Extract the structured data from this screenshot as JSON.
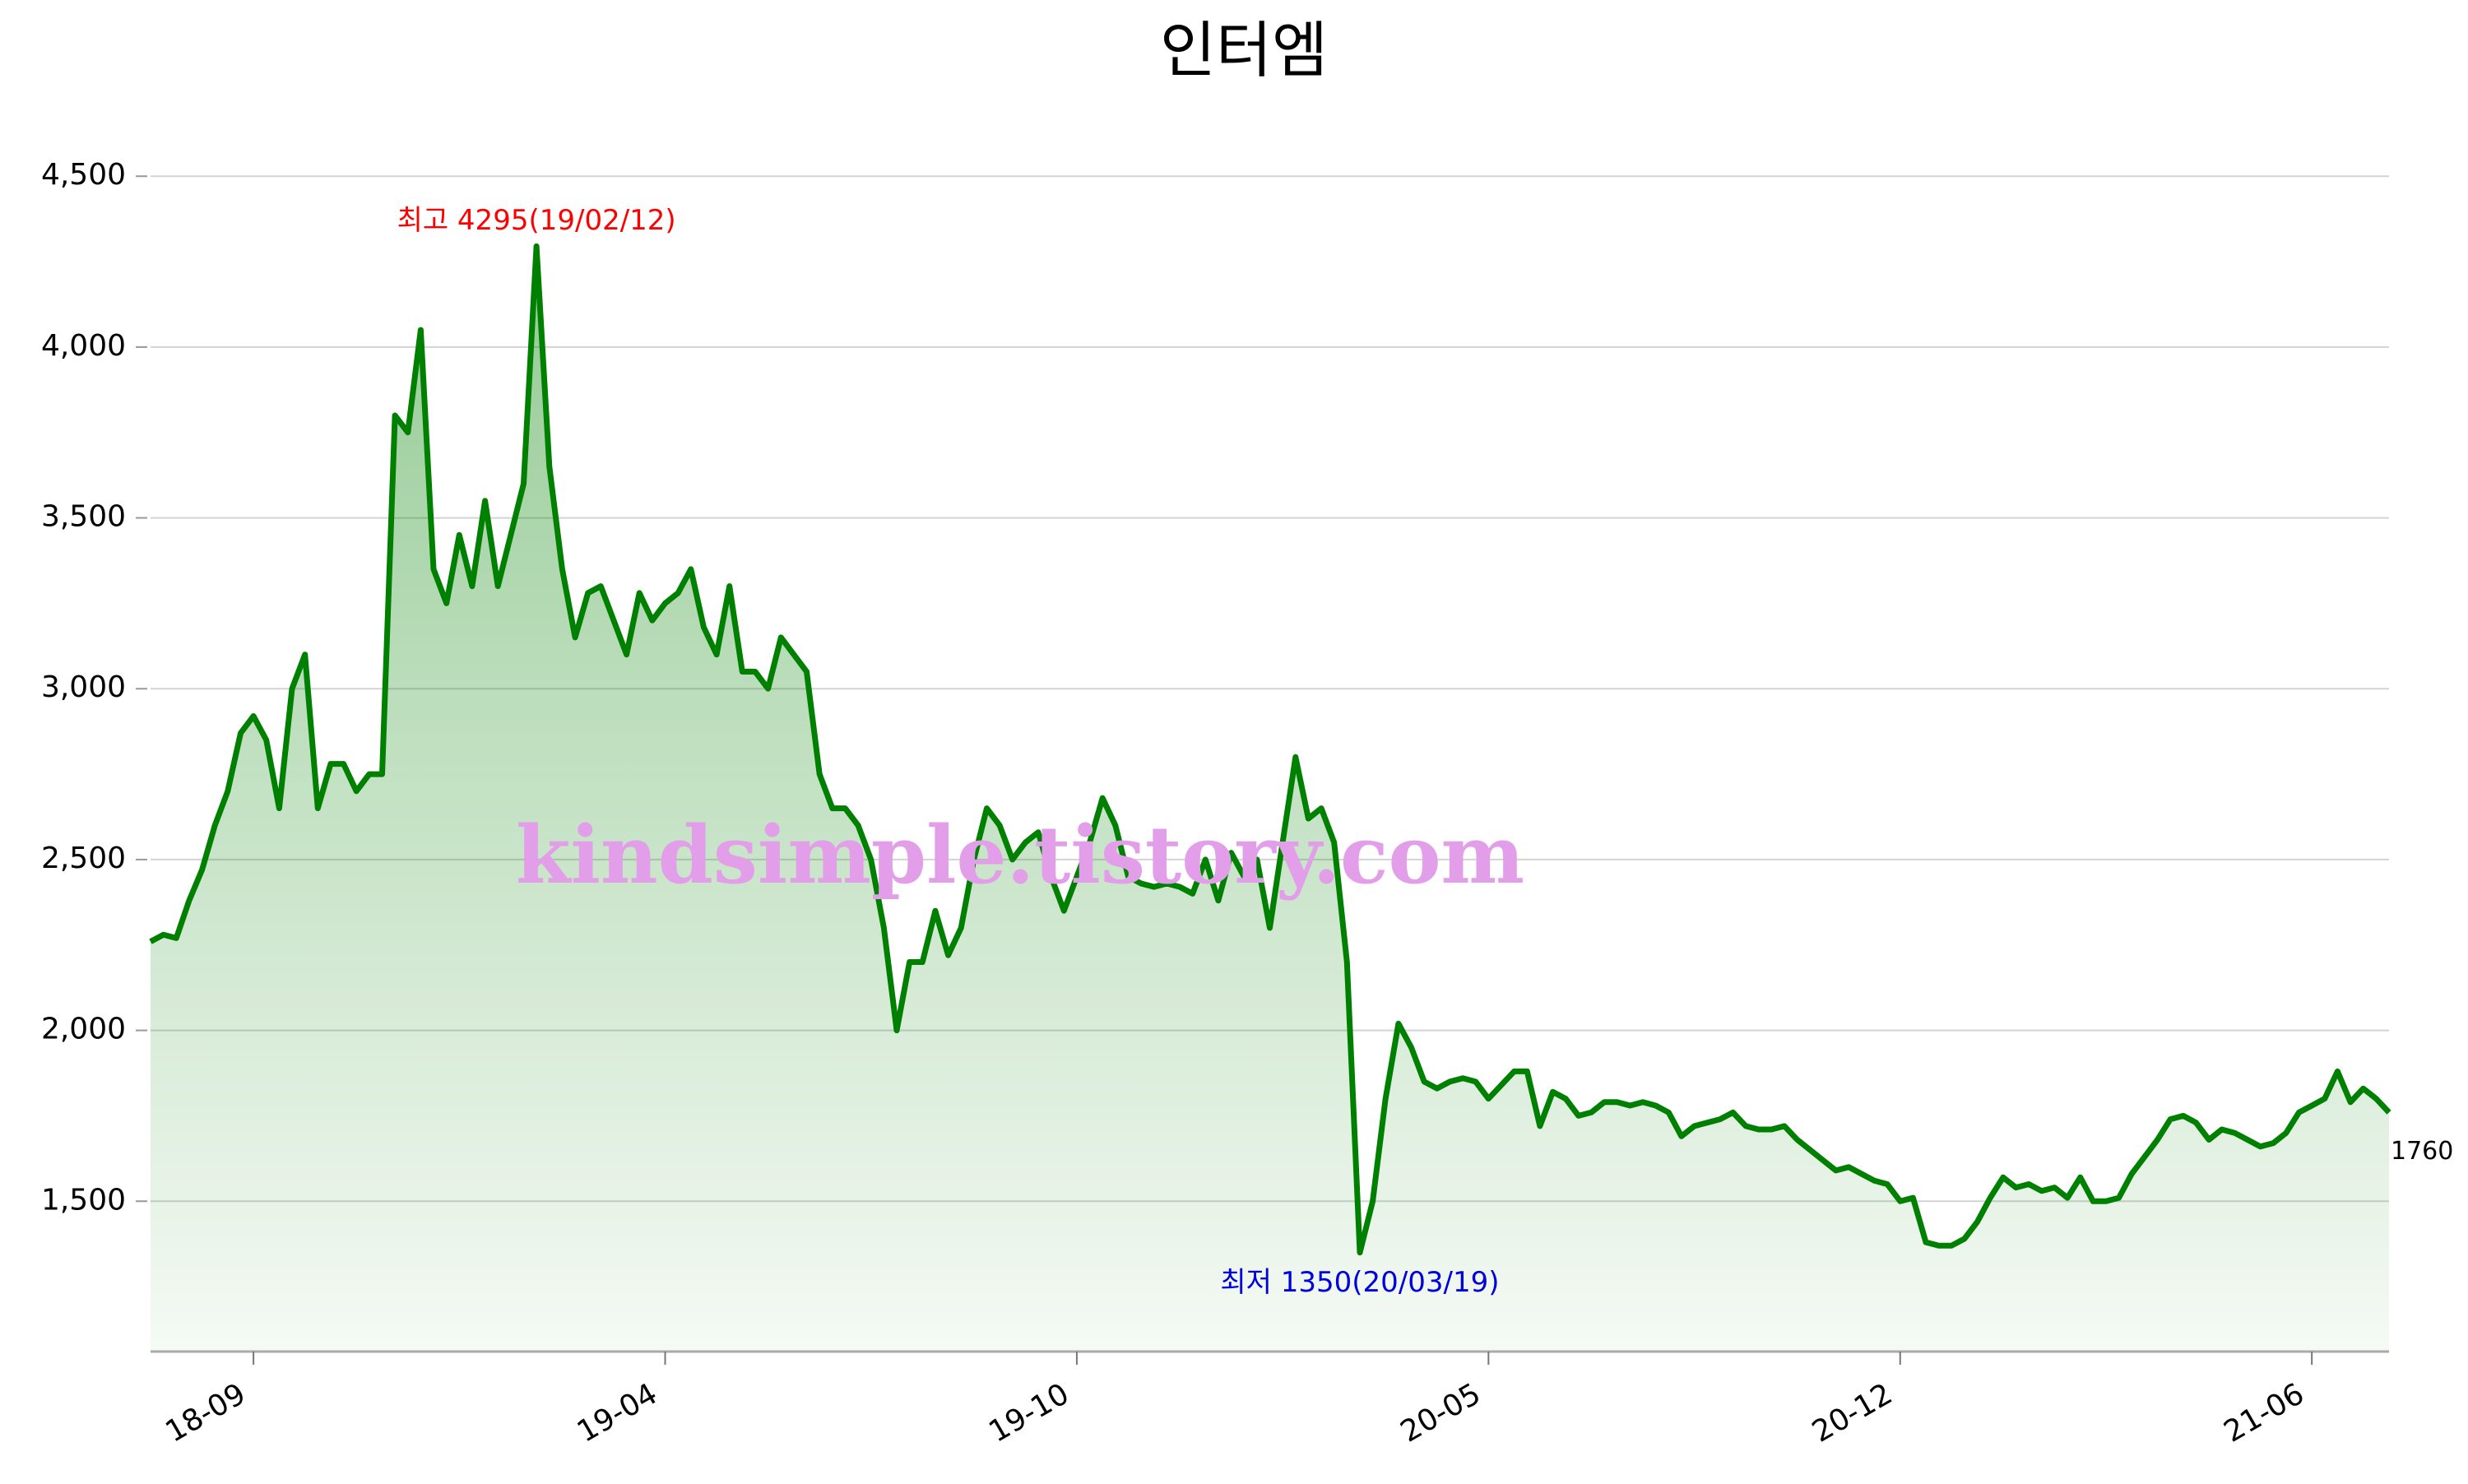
{
  "chart_data": {
    "type": "line",
    "title": "인터엠",
    "watermark": "kindsimple.tistory.com",
    "annotations": {
      "max": "최고 4295(19/02/12)",
      "min": "최저 1350(20/03/19)"
    },
    "color": "#008000",
    "categories": [
      null,
      null,
      null,
      null,
      null,
      null,
      null,
      null,
      "18-09",
      null,
      null,
      null,
      null,
      null,
      null,
      null,
      null,
      null,
      null,
      null,
      null,
      null,
      null,
      null,
      null,
      null,
      null,
      null,
      null,
      null,
      null,
      null,
      null,
      null,
      null,
      null,
      null,
      null,
      null,
      null,
      "19-04",
      null,
      null,
      null,
      null,
      null,
      null,
      null,
      null,
      null,
      null,
      null,
      null,
      null,
      null,
      null,
      null,
      null,
      null,
      null,
      null,
      null,
      null,
      null,
      null,
      null,
      null,
      null,
      null,
      null,
      null,
      null,
      "19-10",
      null,
      null,
      null,
      null,
      null,
      null,
      null,
      null,
      null,
      null,
      null,
      null,
      null,
      null,
      null,
      null,
      null,
      null,
      null,
      null,
      null,
      null,
      null,
      null,
      null,
      null,
      null,
      null,
      null,
      null,
      null,
      "20-05",
      null,
      null,
      null,
      null,
      null,
      null,
      null,
      null,
      null,
      null,
      null,
      null,
      null,
      null,
      null,
      null,
      null,
      null,
      null,
      null,
      null,
      null,
      null,
      null,
      null,
      null,
      null,
      null,
      null,
      null,
      null,
      "20-12",
      null,
      null,
      null,
      null,
      null,
      null,
      null,
      null,
      null,
      null,
      null,
      null,
      null,
      null,
      null,
      null,
      null,
      null,
      null,
      null,
      null,
      null,
      null,
      null,
      null,
      null,
      null,
      null,
      null,
      null,
      null,
      "21-06",
      null,
      null,
      null,
      null,
      null,
      null
    ],
    "values": [
      2260,
      2280,
      2270,
      2380,
      2470,
      2600,
      2700,
      2870,
      2920,
      2850,
      2650,
      3000,
      3100,
      2650,
      2780,
      2780,
      2700,
      2750,
      2750,
      3800,
      3750,
      4050,
      3350,
      3250,
      3450,
      3300,
      3550,
      3300,
      3450,
      3600,
      4295,
      3650,
      3350,
      3150,
      3280,
      3300,
      3200,
      3100,
      3280,
      3200,
      3250,
      3280,
      3350,
      3180,
      3100,
      3300,
      3050,
      3050,
      3000,
      3150,
      3100,
      3050,
      2750,
      2650,
      2650,
      2600,
      2500,
      2300,
      2000,
      2200,
      2200,
      2350,
      2220,
      2300,
      2500,
      2650,
      2600,
      2500,
      2550,
      2580,
      2450,
      2350,
      2450,
      2550,
      2680,
      2600,
      2450,
      2430,
      2420,
      2430,
      2420,
      2400,
      2500,
      2380,
      2520,
      2450,
      2500,
      2300,
      2550,
      2800,
      2620,
      2650,
      2550,
      2200,
      1350,
      1500,
      1800,
      2020,
      1950,
      1850,
      1830,
      1850,
      1860,
      1850,
      1800,
      1840,
      1880,
      1880,
      1720,
      1820,
      1800,
      1750,
      1760,
      1790,
      1790,
      1780,
      1790,
      1780,
      1760,
      1690,
      1720,
      1730,
      1740,
      1760,
      1720,
      1710,
      1710,
      1720,
      1680,
      1650,
      1620,
      1590,
      1600,
      1580,
      1560,
      1550,
      1500,
      1510,
      1380,
      1370,
      1370,
      1390,
      1440,
      1510,
      1570,
      1540,
      1550,
      1530,
      1540,
      1510,
      1570,
      1500,
      1500,
      1510,
      1580,
      1630,
      1680,
      1740,
      1750,
      1730,
      1680,
      1710,
      1700,
      1680,
      1660,
      1670,
      1700,
      1760,
      1780,
      1800,
      1880,
      1790,
      1830,
      1800,
      1760
    ],
    "ylim": [
      1060,
      4580
    ],
    "yticks": [
      {
        "value": 1500,
        "label": "1,500"
      },
      {
        "value": 2000,
        "label": "2,000"
      },
      {
        "value": 2500,
        "label": "2,500"
      },
      {
        "value": 3000,
        "label": "3,000"
      },
      {
        "value": 3500,
        "label": "3,500"
      },
      {
        "value": 4000,
        "label": "4,000"
      },
      {
        "value": 4500,
        "label": "4,500"
      }
    ],
    "grid": true
  }
}
